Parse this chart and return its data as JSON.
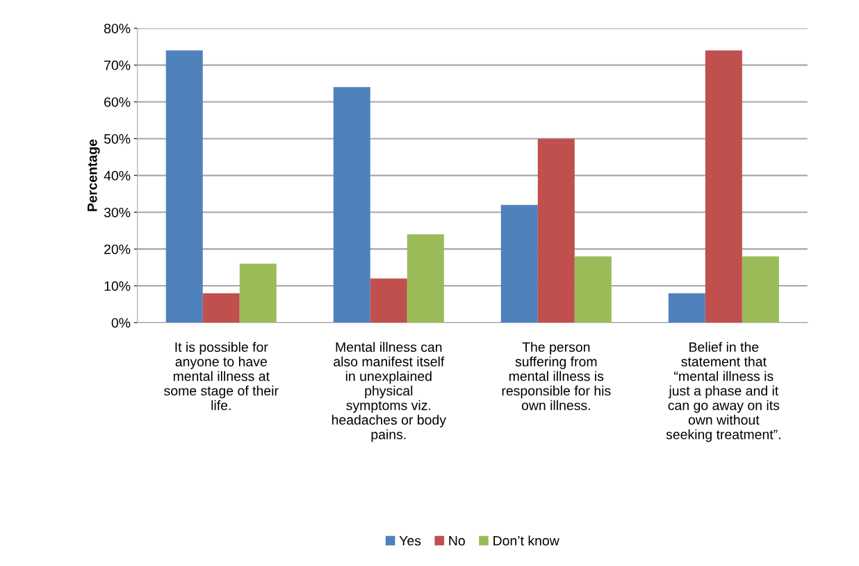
{
  "chart_data": {
    "type": "bar",
    "ylabel": "Percentage",
    "categories": [
      "It is possible for\nanyone to have\nmental illness at\nsome stage of their\nlife.",
      "Mental illness can\nalso manifest itself\nin unexplained\nphysical\nsymptoms viz.\nheadaches or body\npains.",
      "The person\nsuffering from\nmental illness is\nresponsible for his\nown illness.",
      "Belief in the\nstatement that\n“mental illness is\njust a phase and it\ncan go away on its\nown without\nseeking treatment”."
    ],
    "series": [
      {
        "name": "Yes",
        "color": "#4f81bd",
        "values": [
          74,
          64,
          32,
          8
        ]
      },
      {
        "name": "No",
        "color": "#c0504d",
        "values": [
          8,
          12,
          50,
          74
        ]
      },
      {
        "name": "Don’t know",
        "color": "#9bbb59",
        "values": [
          16,
          24,
          18,
          18
        ]
      }
    ],
    "ylim": [
      0,
      80
    ],
    "yticks": [
      {
        "value": 0,
        "label": "0%"
      },
      {
        "value": 10,
        "label": "10%"
      },
      {
        "value": 20,
        "label": "20%"
      },
      {
        "value": 30,
        "label": "30%"
      },
      {
        "value": 40,
        "label": "40%"
      },
      {
        "value": 50,
        "label": "50%"
      },
      {
        "value": 60,
        "label": "60%"
      },
      {
        "value": 70,
        "label": "70%"
      },
      {
        "value": 80,
        "label": "80%"
      }
    ],
    "grid": "y",
    "legend": "bottom"
  }
}
